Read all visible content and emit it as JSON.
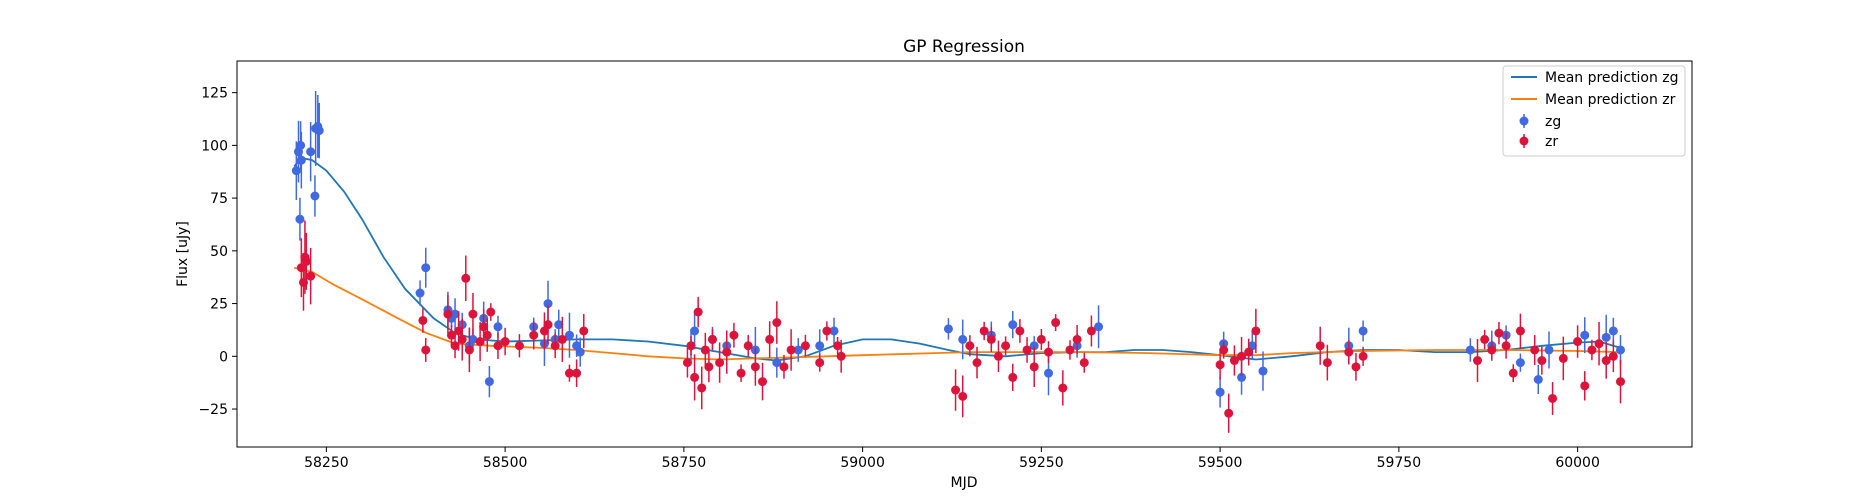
{
  "chart_data": {
    "type": "scatter",
    "title": "GP Regression",
    "xlabel": "MJD",
    "ylabel": "Flux [uJy]",
    "xlim": [
      58125,
      60160
    ],
    "ylim": [
      -43,
      140
    ],
    "xticks": [
      58250,
      58500,
      58750,
      59000,
      59250,
      59500,
      59750,
      60000
    ],
    "yticks": [
      -25,
      0,
      25,
      50,
      75,
      100,
      125
    ],
    "legend_position": "upper right",
    "legend": [
      "Mean prediction zg",
      "Mean prediction zr",
      "zg",
      "zr"
    ],
    "colors": {
      "mean_zg": "#1f77b4",
      "mean_zr": "#ff7f0e",
      "zg": "#4169e1",
      "zr": "#dc143c"
    },
    "mean_prediction_zg": [
      [
        58205,
        90
      ],
      [
        58215,
        94
      ],
      [
        58230,
        93
      ],
      [
        58250,
        88
      ],
      [
        58275,
        78
      ],
      [
        58300,
        65
      ],
      [
        58330,
        47
      ],
      [
        58360,
        32
      ],
      [
        58400,
        18
      ],
      [
        58430,
        11
      ],
      [
        58460,
        8
      ],
      [
        58500,
        7
      ],
      [
        58550,
        7.5
      ],
      [
        58600,
        8
      ],
      [
        58650,
        8
      ],
      [
        58700,
        7
      ],
      [
        58750,
        5
      ],
      [
        58800,
        2
      ],
      [
        58850,
        -1
      ],
      [
        58880,
        -2
      ],
      [
        58920,
        0
      ],
      [
        58960,
        5
      ],
      [
        59000,
        8
      ],
      [
        59040,
        8
      ],
      [
        59080,
        6
      ],
      [
        59120,
        3
      ],
      [
        59150,
        1
      ],
      [
        59200,
        0
      ],
      [
        59250,
        1.5
      ],
      [
        59300,
        2
      ],
      [
        59340,
        2
      ],
      [
        59380,
        3
      ],
      [
        59420,
        3
      ],
      [
        59460,
        2
      ],
      [
        59500,
        0.5
      ],
      [
        59550,
        -1.5
      ],
      [
        59600,
        0
      ],
      [
        59650,
        2
      ],
      [
        59700,
        3
      ],
      [
        59750,
        3
      ],
      [
        59800,
        2
      ],
      [
        59850,
        2
      ],
      [
        59900,
        3
      ],
      [
        59950,
        5
      ],
      [
        60000,
        6.5
      ],
      [
        60030,
        7
      ],
      [
        60060,
        4
      ]
    ],
    "mean_prediction_zr": [
      [
        58205,
        42
      ],
      [
        58230,
        40
      ],
      [
        58260,
        34
      ],
      [
        58300,
        27
      ],
      [
        58350,
        18
      ],
      [
        58390,
        11
      ],
      [
        58430,
        6
      ],
      [
        58480,
        5
      ],
      [
        58550,
        4
      ],
      [
        58600,
        3
      ],
      [
        58650,
        1.5
      ],
      [
        58700,
        0
      ],
      [
        58750,
        -1
      ],
      [
        58800,
        -1.5
      ],
      [
        58850,
        -1
      ],
      [
        58900,
        -0.5
      ],
      [
        58950,
        0
      ],
      [
        59000,
        0.5
      ],
      [
        59100,
        1.5
      ],
      [
        59150,
        2
      ],
      [
        59200,
        2
      ],
      [
        59300,
        2
      ],
      [
        59400,
        1.5
      ],
      [
        59500,
        0.5
      ],
      [
        59550,
        0.5
      ],
      [
        59600,
        1.5
      ],
      [
        59700,
        2.5
      ],
      [
        59800,
        3
      ],
      [
        59900,
        3
      ],
      [
        60000,
        2.5
      ],
      [
        60060,
        2
      ]
    ],
    "zg": [
      [
        58208,
        88
      ],
      [
        58211,
        97
      ],
      [
        58213,
        65
      ],
      [
        58214,
        100
      ],
      [
        58215,
        93
      ],
      [
        58228,
        97
      ],
      [
        58234,
        76
      ],
      [
        58235,
        108
      ],
      [
        58238,
        109
      ],
      [
        58240,
        107
      ],
      [
        58381,
        30
      ],
      [
        58389,
        42
      ],
      [
        58420,
        22
      ],
      [
        58425,
        18
      ],
      [
        58430,
        20
      ],
      [
        58440,
        15
      ],
      [
        58450,
        5
      ],
      [
        58455,
        8
      ],
      [
        58470,
        18
      ],
      [
        58478,
        -12
      ],
      [
        58490,
        14
      ],
      [
        58540,
        14
      ],
      [
        58555,
        6
      ],
      [
        58560,
        25
      ],
      [
        58570,
        8
      ],
      [
        58575,
        15
      ],
      [
        58590,
        10
      ],
      [
        58600,
        5
      ],
      [
        58605,
        2
      ],
      [
        58760,
        5
      ],
      [
        58765,
        12
      ],
      [
        58790,
        8
      ],
      [
        58810,
        5
      ],
      [
        58850,
        3
      ],
      [
        58880,
        -3
      ],
      [
        58910,
        3
      ],
      [
        58940,
        5
      ],
      [
        58960,
        12
      ],
      [
        59120,
        13
      ],
      [
        59140,
        8
      ],
      [
        59180,
        10
      ],
      [
        59210,
        15
      ],
      [
        59240,
        5
      ],
      [
        59260,
        -8
      ],
      [
        59300,
        5
      ],
      [
        59330,
        14
      ],
      [
        59500,
        -17
      ],
      [
        59505,
        6
      ],
      [
        59530,
        -10
      ],
      [
        59545,
        5
      ],
      [
        59560,
        -7
      ],
      [
        59680,
        5
      ],
      [
        59700,
        12
      ],
      [
        59850,
        3
      ],
      [
        59880,
        5
      ],
      [
        59900,
        10
      ],
      [
        59920,
        -3
      ],
      [
        59945,
        -11
      ],
      [
        59960,
        3
      ],
      [
        60010,
        10
      ],
      [
        60040,
        9
      ],
      [
        60050,
        12
      ],
      [
        60060,
        3
      ]
    ],
    "zr": [
      [
        58215,
        42
      ],
      [
        58218,
        35
      ],
      [
        58220,
        47
      ],
      [
        58222,
        45
      ],
      [
        58228,
        38
      ],
      [
        58385,
        17
      ],
      [
        58389,
        3
      ],
      [
        58420,
        20
      ],
      [
        58425,
        10
      ],
      [
        58430,
        5
      ],
      [
        58435,
        12
      ],
      [
        58440,
        8
      ],
      [
        58445,
        37
      ],
      [
        58450,
        3
      ],
      [
        58455,
        20
      ],
      [
        58465,
        7
      ],
      [
        58470,
        14
      ],
      [
        58475,
        10
      ],
      [
        58480,
        21
      ],
      [
        58490,
        5
      ],
      [
        58500,
        7
      ],
      [
        58520,
        5
      ],
      [
        58540,
        10
      ],
      [
        58555,
        12
      ],
      [
        58560,
        15
      ],
      [
        58570,
        5
      ],
      [
        58580,
        8
      ],
      [
        58590,
        -8
      ],
      [
        58600,
        -8
      ],
      [
        58610,
        12
      ],
      [
        58755,
        -3
      ],
      [
        58760,
        5
      ],
      [
        58765,
        -10
      ],
      [
        58770,
        21
      ],
      [
        58775,
        -15
      ],
      [
        58780,
        3
      ],
      [
        58785,
        -5
      ],
      [
        58790,
        8
      ],
      [
        58800,
        -3
      ],
      [
        58810,
        2
      ],
      [
        58820,
        10
      ],
      [
        58830,
        -8
      ],
      [
        58840,
        5
      ],
      [
        58850,
        -5
      ],
      [
        58860,
        -12
      ],
      [
        58870,
        8
      ],
      [
        58880,
        16
      ],
      [
        58890,
        -5
      ],
      [
        58900,
        3
      ],
      [
        58920,
        5
      ],
      [
        58940,
        -3
      ],
      [
        58950,
        12
      ],
      [
        58965,
        5
      ],
      [
        58970,
        0
      ],
      [
        59130,
        -16
      ],
      [
        59140,
        -19
      ],
      [
        59150,
        5
      ],
      [
        59160,
        -3
      ],
      [
        59170,
        12
      ],
      [
        59180,
        8
      ],
      [
        59190,
        0
      ],
      [
        59200,
        5
      ],
      [
        59210,
        -10
      ],
      [
        59220,
        12
      ],
      [
        59230,
        3
      ],
      [
        59240,
        -5
      ],
      [
        59250,
        8
      ],
      [
        59260,
        2
      ],
      [
        59270,
        16
      ],
      [
        59280,
        -15
      ],
      [
        59290,
        3
      ],
      [
        59300,
        8
      ],
      [
        59310,
        -3
      ],
      [
        59320,
        12
      ],
      [
        59500,
        -4
      ],
      [
        59505,
        3
      ],
      [
        59512,
        -27
      ],
      [
        59520,
        -2
      ],
      [
        59530,
        0
      ],
      [
        59540,
        2
      ],
      [
        59550,
        12
      ],
      [
        59640,
        5
      ],
      [
        59650,
        -3
      ],
      [
        59680,
        2
      ],
      [
        59690,
        -5
      ],
      [
        59700,
        0
      ],
      [
        59860,
        -2
      ],
      [
        59870,
        8
      ],
      [
        59880,
        3
      ],
      [
        59890,
        11
      ],
      [
        59900,
        5
      ],
      [
        59910,
        -8
      ],
      [
        59920,
        12
      ],
      [
        59940,
        3
      ],
      [
        59950,
        -2
      ],
      [
        59965,
        -20
      ],
      [
        59980,
        -1
      ],
      [
        60000,
        7
      ],
      [
        60010,
        -14
      ],
      [
        60020,
        3
      ],
      [
        60030,
        6
      ],
      [
        60040,
        -2
      ],
      [
        60050,
        0
      ],
      [
        60060,
        -12
      ]
    ]
  }
}
